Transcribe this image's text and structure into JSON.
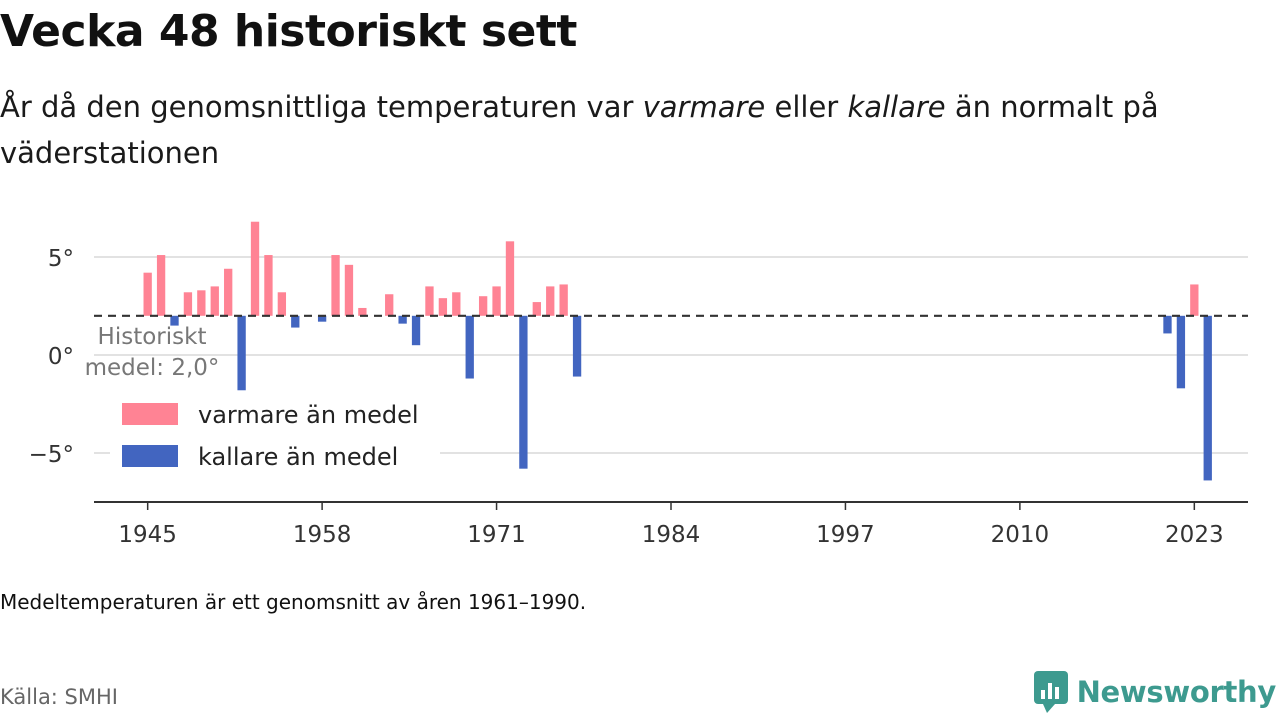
{
  "title": "Vecka 48 historiskt sett",
  "subtitle": {
    "part1": "År då den genomsnittliga temperaturen var ",
    "warm_word": "varmare",
    "part2": " eller ",
    "cold_word": "kallare",
    "part3": " än normalt på väderstationen"
  },
  "note": "Medeltemperaturen är ett genomsnitt av åren 1961–1990.",
  "source": "Källa: SMHI",
  "logo": {
    "text": "Newsworthy",
    "icon": "bar-chart-bubble-icon"
  },
  "colors": {
    "warm": "#ff8394",
    "cold": "#4265c0",
    "logo": "#3d9a8f",
    "reference": "#333333"
  },
  "chart_data": {
    "type": "bar",
    "baseline": 2.0,
    "baseline_label": [
      "Historiskt",
      "medel: 2,0°"
    ],
    "y_ticks": [
      5,
      0,
      -5
    ],
    "y_tick_labels": [
      "5°",
      "0°",
      "−5°"
    ],
    "x_ticks": [
      1945,
      1958,
      1971,
      1984,
      1997,
      2010,
      2023
    ],
    "xlim": [
      1941,
      2027
    ],
    "ylim": [
      -7.5,
      7.5
    ],
    "grid": true,
    "legend_position": "left-center",
    "legend": [
      {
        "key": "warm",
        "label": "varmare än medel"
      },
      {
        "key": "cold",
        "label": "kallare än medel"
      }
    ],
    "years": [
      1945,
      1946,
      1947,
      1948,
      1949,
      1950,
      1951,
      1952,
      1953,
      1954,
      1955,
      1956,
      1957,
      1958,
      1959,
      1960,
      1961,
      1962,
      1963,
      1964,
      1965,
      1966,
      1967,
      1968,
      1969,
      1970,
      1971,
      1972,
      1973,
      1974,
      1975,
      1976,
      1977,
      2021,
      2022,
      2023,
      2024
    ],
    "values": [
      4.2,
      5.1,
      1.5,
      3.2,
      3.3,
      3.5,
      4.4,
      -1.8,
      6.8,
      5.1,
      3.2,
      1.4,
      2.0,
      1.7,
      5.1,
      4.6,
      2.4,
      2.0,
      3.1,
      1.6,
      0.5,
      3.5,
      2.9,
      3.2,
      -1.2,
      3.0,
      3.5,
      5.8,
      -5.8,
      2.7,
      3.5,
      3.6,
      -1.1,
      1.1,
      -1.7,
      3.6,
      -6.4
    ]
  }
}
